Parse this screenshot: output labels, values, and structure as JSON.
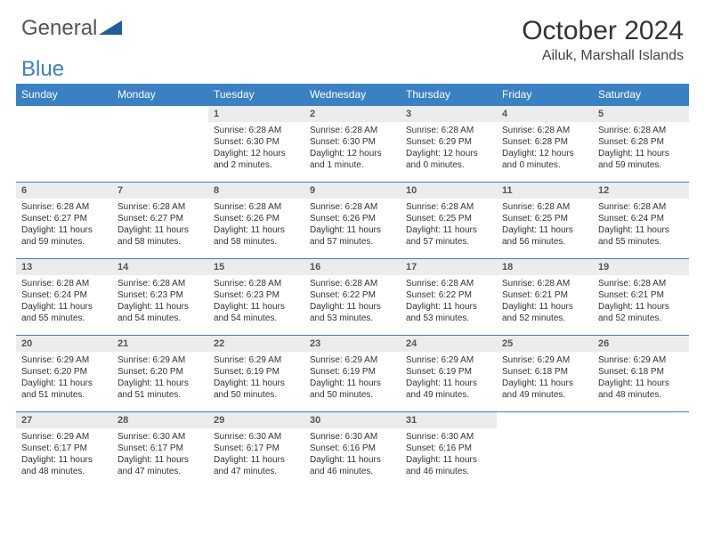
{
  "brand": {
    "part1": "General",
    "part2": "Blue"
  },
  "header": {
    "month": "October 2024",
    "location": "Ailuk, Marshall Islands"
  },
  "colors": {
    "accent": "#3a81c4",
    "header_bg": "#3a81c4",
    "header_text": "#ffffff",
    "daynum_bg": "#ececec",
    "body_text": "#333333"
  },
  "typography": {
    "month_fontsize": 30,
    "location_fontsize": 16,
    "dayheader_fontsize": 12,
    "daynum_fontsize": 11,
    "body_fontsize": 10
  },
  "calendar": {
    "day_names": [
      "Sunday",
      "Monday",
      "Tuesday",
      "Wednesday",
      "Thursday",
      "Friday",
      "Saturday"
    ],
    "weeks": [
      [
        null,
        null,
        {
          "n": "1",
          "sunrise": "Sunrise: 6:28 AM",
          "sunset": "Sunset: 6:30 PM",
          "daylight": "Daylight: 12 hours and 2 minutes."
        },
        {
          "n": "2",
          "sunrise": "Sunrise: 6:28 AM",
          "sunset": "Sunset: 6:30 PM",
          "daylight": "Daylight: 12 hours and 1 minute."
        },
        {
          "n": "3",
          "sunrise": "Sunrise: 6:28 AM",
          "sunset": "Sunset: 6:29 PM",
          "daylight": "Daylight: 12 hours and 0 minutes."
        },
        {
          "n": "4",
          "sunrise": "Sunrise: 6:28 AM",
          "sunset": "Sunset: 6:28 PM",
          "daylight": "Daylight: 12 hours and 0 minutes."
        },
        {
          "n": "5",
          "sunrise": "Sunrise: 6:28 AM",
          "sunset": "Sunset: 6:28 PM",
          "daylight": "Daylight: 11 hours and 59 minutes."
        }
      ],
      [
        {
          "n": "6",
          "sunrise": "Sunrise: 6:28 AM",
          "sunset": "Sunset: 6:27 PM",
          "daylight": "Daylight: 11 hours and 59 minutes."
        },
        {
          "n": "7",
          "sunrise": "Sunrise: 6:28 AM",
          "sunset": "Sunset: 6:27 PM",
          "daylight": "Daylight: 11 hours and 58 minutes."
        },
        {
          "n": "8",
          "sunrise": "Sunrise: 6:28 AM",
          "sunset": "Sunset: 6:26 PM",
          "daylight": "Daylight: 11 hours and 58 minutes."
        },
        {
          "n": "9",
          "sunrise": "Sunrise: 6:28 AM",
          "sunset": "Sunset: 6:26 PM",
          "daylight": "Daylight: 11 hours and 57 minutes."
        },
        {
          "n": "10",
          "sunrise": "Sunrise: 6:28 AM",
          "sunset": "Sunset: 6:25 PM",
          "daylight": "Daylight: 11 hours and 57 minutes."
        },
        {
          "n": "11",
          "sunrise": "Sunrise: 6:28 AM",
          "sunset": "Sunset: 6:25 PM",
          "daylight": "Daylight: 11 hours and 56 minutes."
        },
        {
          "n": "12",
          "sunrise": "Sunrise: 6:28 AM",
          "sunset": "Sunset: 6:24 PM",
          "daylight": "Daylight: 11 hours and 55 minutes."
        }
      ],
      [
        {
          "n": "13",
          "sunrise": "Sunrise: 6:28 AM",
          "sunset": "Sunset: 6:24 PM",
          "daylight": "Daylight: 11 hours and 55 minutes."
        },
        {
          "n": "14",
          "sunrise": "Sunrise: 6:28 AM",
          "sunset": "Sunset: 6:23 PM",
          "daylight": "Daylight: 11 hours and 54 minutes."
        },
        {
          "n": "15",
          "sunrise": "Sunrise: 6:28 AM",
          "sunset": "Sunset: 6:23 PM",
          "daylight": "Daylight: 11 hours and 54 minutes."
        },
        {
          "n": "16",
          "sunrise": "Sunrise: 6:28 AM",
          "sunset": "Sunset: 6:22 PM",
          "daylight": "Daylight: 11 hours and 53 minutes."
        },
        {
          "n": "17",
          "sunrise": "Sunrise: 6:28 AM",
          "sunset": "Sunset: 6:22 PM",
          "daylight": "Daylight: 11 hours and 53 minutes."
        },
        {
          "n": "18",
          "sunrise": "Sunrise: 6:28 AM",
          "sunset": "Sunset: 6:21 PM",
          "daylight": "Daylight: 11 hours and 52 minutes."
        },
        {
          "n": "19",
          "sunrise": "Sunrise: 6:28 AM",
          "sunset": "Sunset: 6:21 PM",
          "daylight": "Daylight: 11 hours and 52 minutes."
        }
      ],
      [
        {
          "n": "20",
          "sunrise": "Sunrise: 6:29 AM",
          "sunset": "Sunset: 6:20 PM",
          "daylight": "Daylight: 11 hours and 51 minutes."
        },
        {
          "n": "21",
          "sunrise": "Sunrise: 6:29 AM",
          "sunset": "Sunset: 6:20 PM",
          "daylight": "Daylight: 11 hours and 51 minutes."
        },
        {
          "n": "22",
          "sunrise": "Sunrise: 6:29 AM",
          "sunset": "Sunset: 6:19 PM",
          "daylight": "Daylight: 11 hours and 50 minutes."
        },
        {
          "n": "23",
          "sunrise": "Sunrise: 6:29 AM",
          "sunset": "Sunset: 6:19 PM",
          "daylight": "Daylight: 11 hours and 50 minutes."
        },
        {
          "n": "24",
          "sunrise": "Sunrise: 6:29 AM",
          "sunset": "Sunset: 6:19 PM",
          "daylight": "Daylight: 11 hours and 49 minutes."
        },
        {
          "n": "25",
          "sunrise": "Sunrise: 6:29 AM",
          "sunset": "Sunset: 6:18 PM",
          "daylight": "Daylight: 11 hours and 49 minutes."
        },
        {
          "n": "26",
          "sunrise": "Sunrise: 6:29 AM",
          "sunset": "Sunset: 6:18 PM",
          "daylight": "Daylight: 11 hours and 48 minutes."
        }
      ],
      [
        {
          "n": "27",
          "sunrise": "Sunrise: 6:29 AM",
          "sunset": "Sunset: 6:17 PM",
          "daylight": "Daylight: 11 hours and 48 minutes."
        },
        {
          "n": "28",
          "sunrise": "Sunrise: 6:30 AM",
          "sunset": "Sunset: 6:17 PM",
          "daylight": "Daylight: 11 hours and 47 minutes."
        },
        {
          "n": "29",
          "sunrise": "Sunrise: 6:30 AM",
          "sunset": "Sunset: 6:17 PM",
          "daylight": "Daylight: 11 hours and 47 minutes."
        },
        {
          "n": "30",
          "sunrise": "Sunrise: 6:30 AM",
          "sunset": "Sunset: 6:16 PM",
          "daylight": "Daylight: 11 hours and 46 minutes."
        },
        {
          "n": "31",
          "sunrise": "Sunrise: 6:30 AM",
          "sunset": "Sunset: 6:16 PM",
          "daylight": "Daylight: 11 hours and 46 minutes."
        },
        null,
        null
      ]
    ]
  }
}
